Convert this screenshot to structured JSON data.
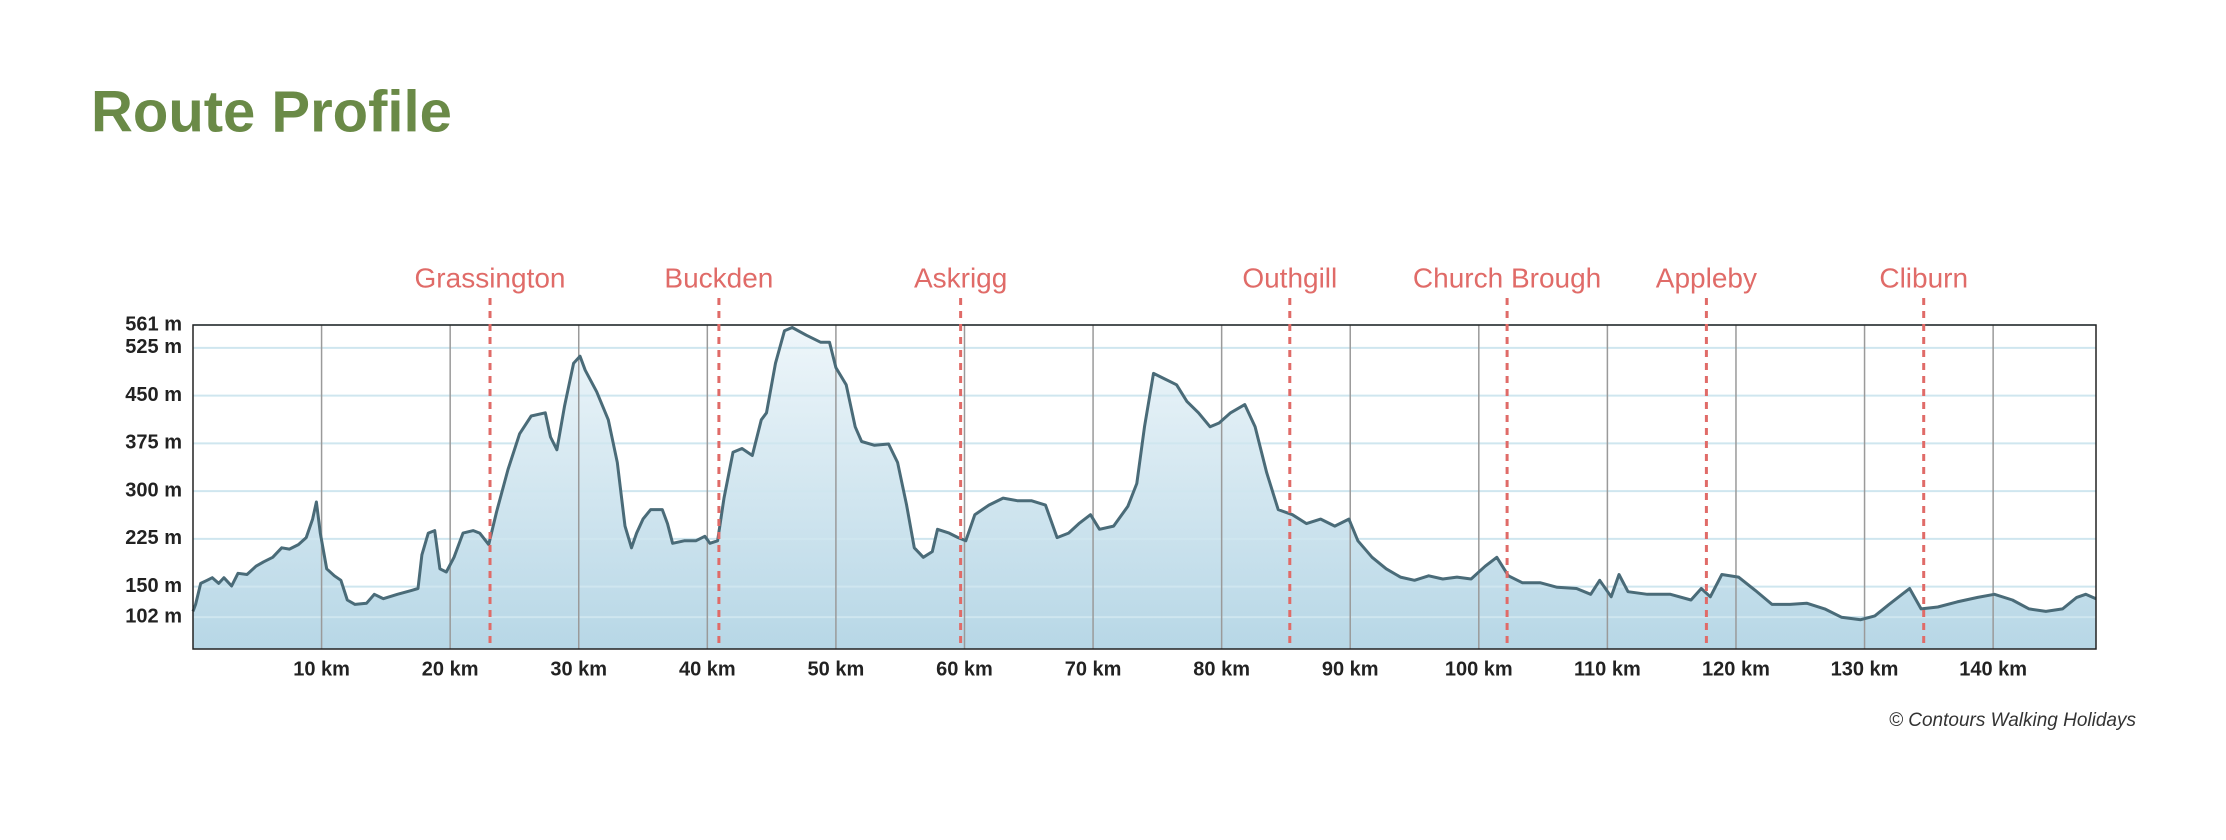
{
  "chart_data": {
    "type": "area",
    "title": "Route Profile",
    "credit": "© Contours Walking Holidays",
    "x": [
      0,
      0.2,
      0.6,
      1.1,
      1.5,
      2,
      2.4,
      3,
      3.5,
      4.2,
      4.9,
      5.5,
      6.2,
      6.9,
      7.5,
      8.2,
      8.8,
      9.3,
      9.6,
      9.9,
      10.4,
      11,
      11.5,
      12,
      12.6,
      13.5,
      14.1,
      14.8,
      15.9,
      17,
      17.5,
      17.8,
      18.3,
      18.8,
      19.2,
      19.7,
      20.3,
      21,
      21.8,
      22.3,
      23,
      23.6,
      24.5,
      25.4,
      26.3,
      27.4,
      27.8,
      28.3,
      28.9,
      29.6,
      30.1,
      30.5,
      31.4,
      32.3,
      33,
      33.6,
      34.1,
      34.5,
      35,
      35.6,
      36.5,
      36.9,
      37.3,
      38.2,
      39.1,
      39.8,
      40.2,
      40.8,
      41.3,
      42,
      42.7,
      43.5,
      44.2,
      44.6,
      45.3,
      46,
      46.6,
      47.7,
      48.8,
      49.5,
      50,
      50.8,
      51.5,
      52,
      53,
      54.1,
      54.8,
      55.5,
      56.1,
      56.8,
      57.5,
      57.9,
      58.8,
      59.5,
      60.1,
      60.8,
      61.9,
      63,
      64.1,
      65.2,
      66.3,
      67.2,
      68.1,
      68.9,
      69.8,
      70.5,
      71.6,
      72.7,
      73.4,
      74,
      74.7,
      75.6,
      76.5,
      77.3,
      78.2,
      79.1,
      79.8,
      80.7,
      81.8,
      82.6,
      83.5,
      84.4,
      85.5,
      86.6,
      87.7,
      88.8,
      89.9,
      90.6,
      91.7,
      92.8,
      93.9,
      95,
      96.1,
      97.2,
      98.3,
      99.4,
      100.5,
      101.4,
      102.3,
      103.4,
      104.8,
      106.1,
      107.6,
      108.7,
      109.4,
      110.3,
      110.9,
      111.6,
      113.1,
      114.9,
      116.5,
      117.3,
      118,
      118.9,
      120.2,
      121.5,
      122.8,
      124.2,
      125.5,
      126.9,
      128.2,
      129.7,
      130.8,
      131.9,
      133.5,
      134.4,
      135.7,
      137.2,
      138.8,
      140.1,
      141.5,
      142.8,
      144.1,
      145.4,
      146.5,
      147.2,
      148
    ],
    "series": [
      {
        "color": "#4a6b78",
        "fill": "#c4e0ec",
        "values": [
          111,
          122,
          155,
          160,
          164,
          155,
          164,
          151,
          171,
          169,
          182,
          189,
          196,
          211,
          209,
          216,
          227,
          256,
          283,
          234,
          178,
          167,
          160,
          129,
          122,
          124,
          138,
          131,
          138,
          144,
          147,
          200,
          234,
          238,
          178,
          173,
          196,
          234,
          238,
          234,
          216,
          267,
          334,
          390,
          418,
          423,
          385,
          365,
          434,
          501,
          512,
          490,
          456,
          412,
          345,
          245,
          211,
          234,
          256,
          271,
          271,
          249,
          218,
          222,
          222,
          229,
          218,
          222,
          289,
          361,
          367,
          356,
          412,
          423,
          501,
          552,
          557,
          545,
          534,
          534,
          494,
          467,
          401,
          378,
          372,
          374,
          345,
          278,
          211,
          196,
          205,
          240,
          234,
          227,
          222,
          263,
          278,
          289,
          285,
          285,
          278,
          227,
          234,
          249,
          263,
          240,
          245,
          276,
          312,
          401,
          485,
          476,
          467,
          441,
          423,
          401,
          407,
          423,
          436,
          401,
          329,
          271,
          263,
          249,
          256,
          245,
          256,
          222,
          196,
          178,
          165,
          160,
          167,
          162,
          165,
          162,
          182,
          196,
          167,
          156,
          156,
          149,
          147,
          138,
          160,
          134,
          169,
          142,
          138,
          138,
          129,
          147,
          134,
          169,
          165,
          144,
          122,
          122,
          124,
          115,
          102,
          98,
          104,
          122,
          147,
          115,
          118,
          126,
          133,
          138,
          129,
          115,
          111,
          115,
          133,
          138,
          131
        ]
      }
    ],
    "markers": [
      {
        "name": "Grassington",
        "km": 23.1
      },
      {
        "name": "Buckden",
        "km": 40.9
      },
      {
        "name": "Askrigg",
        "km": 59.7
      },
      {
        "name": "Outhgill",
        "km": 85.3
      },
      {
        "name": "Church Brough",
        "km": 102.2
      },
      {
        "name": "Appleby",
        "km": 117.7
      },
      {
        "name": "Cliburn",
        "km": 134.6
      }
    ],
    "marker_color": "#e06b68",
    "xlim": [
      0,
      148
    ],
    "xticks": [
      {
        "value": 10,
        "label": "10 km"
      },
      {
        "value": 20,
        "label": "20 km"
      },
      {
        "value": 30,
        "label": "30 km"
      },
      {
        "value": 40,
        "label": "40 km"
      },
      {
        "value": 50,
        "label": "50 km"
      },
      {
        "value": 60,
        "label": "60 km"
      },
      {
        "value": 70,
        "label": "70 km"
      },
      {
        "value": 80,
        "label": "80 km"
      },
      {
        "value": 90,
        "label": "90 km"
      },
      {
        "value": 100,
        "label": "100 km"
      },
      {
        "value": 110,
        "label": "110 km"
      },
      {
        "value": 120,
        "label": "120 km"
      },
      {
        "value": 130,
        "label": "130 km"
      },
      {
        "value": 140,
        "label": "140 km"
      }
    ],
    "ylim": [
      52,
      561
    ],
    "yticks": [
      {
        "value": 102,
        "label": "102 m"
      },
      {
        "value": 150,
        "label": "150 m"
      },
      {
        "value": 225,
        "label": "225 m"
      },
      {
        "value": 300,
        "label": "300 m"
      },
      {
        "value": 375,
        "label": "375 m"
      },
      {
        "value": 450,
        "label": "450 m"
      },
      {
        "value": 525,
        "label": "525 m"
      },
      {
        "value": 561,
        "label": "561 m"
      }
    ],
    "grid": true
  }
}
